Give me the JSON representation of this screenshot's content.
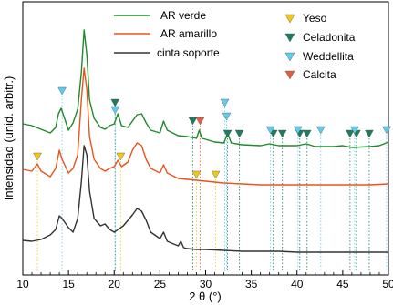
{
  "chart_data": {
    "type": "line",
    "xlabel": "2 θ (°)",
    "ylabel": "Intensidad (unid. arbitr.)",
    "xlim": [
      10,
      50
    ],
    "x_ticks": [
      10,
      15,
      20,
      25,
      30,
      35,
      40,
      45,
      50
    ],
    "y_ticks_labeled": false,
    "grid": false,
    "legend_position": "top",
    "series": [
      {
        "name": "AR verde",
        "color": "#1f8a2a",
        "points": [
          [
            10,
            136
          ],
          [
            11,
            138
          ],
          [
            12,
            142
          ],
          [
            13,
            146
          ],
          [
            13.6,
            140
          ],
          [
            13.9,
            125
          ],
          [
            14.2,
            119
          ],
          [
            14.5,
            128
          ],
          [
            15,
            143
          ],
          [
            15.5,
            135
          ],
          [
            16,
            120
          ],
          [
            16.4,
            80
          ],
          [
            16.7,
            33
          ],
          [
            17,
            60
          ],
          [
            17.3,
            110
          ],
          [
            17.8,
            130
          ],
          [
            18.5,
            140
          ],
          [
            19,
            142
          ],
          [
            19.5,
            138
          ],
          [
            20,
            136
          ],
          [
            20.4,
            125
          ],
          [
            20.8,
            138
          ],
          [
            21.5,
            140
          ],
          [
            22,
            133
          ],
          [
            22.5,
            126
          ],
          [
            23,
            125
          ],
          [
            23.5,
            135
          ],
          [
            24,
            143
          ],
          [
            25,
            146
          ],
          [
            25.4,
            133
          ],
          [
            25.8,
            143
          ],
          [
            27,
            149
          ],
          [
            28,
            150
          ],
          [
            29,
            152
          ],
          [
            29.3,
            143
          ],
          [
            29.6,
            152
          ],
          [
            30,
            153
          ],
          [
            31,
            156
          ],
          [
            32,
            157
          ],
          [
            32.4,
            146
          ],
          [
            32.8,
            157
          ],
          [
            34,
            159
          ],
          [
            36,
            160
          ],
          [
            37,
            158
          ],
          [
            38,
            160
          ],
          [
            40,
            160
          ],
          [
            41,
            158
          ],
          [
            42,
            161
          ],
          [
            44,
            161
          ],
          [
            45,
            160
          ],
          [
            46,
            162
          ],
          [
            48,
            161
          ],
          [
            49,
            160
          ],
          [
            50,
            156
          ]
        ]
      },
      {
        "name": "AR amarillo",
        "color": "#e8541a",
        "points": [
          [
            10,
            186
          ],
          [
            11,
            188
          ],
          [
            11.6,
            180
          ],
          [
            12,
            188
          ],
          [
            13,
            194
          ],
          [
            13.6,
            185
          ],
          [
            14,
            165
          ],
          [
            14.3,
            175
          ],
          [
            15,
            190
          ],
          [
            15.5,
            185
          ],
          [
            16,
            170
          ],
          [
            16.4,
            110
          ],
          [
            16.7,
            75
          ],
          [
            17,
            98
          ],
          [
            17.3,
            150
          ],
          [
            17.8,
            175
          ],
          [
            18.5,
            185
          ],
          [
            19,
            188
          ],
          [
            19.5,
            185
          ],
          [
            20,
            183
          ],
          [
            20.4,
            176
          ],
          [
            20.8,
            183
          ],
          [
            21.5,
            178
          ],
          [
            22,
            165
          ],
          [
            22.5,
            157
          ],
          [
            23,
            160
          ],
          [
            23.5,
            175
          ],
          [
            24,
            185
          ],
          [
            25,
            190
          ],
          [
            25.4,
            181
          ],
          [
            25.8,
            190
          ],
          [
            27,
            196
          ],
          [
            28,
            197
          ],
          [
            29,
            198
          ],
          [
            30,
            199
          ],
          [
            31,
            200
          ],
          [
            32,
            201
          ],
          [
            34,
            202
          ],
          [
            36,
            203
          ],
          [
            38,
            203
          ],
          [
            40,
            203
          ],
          [
            42,
            203
          ],
          [
            44,
            203
          ],
          [
            46,
            203
          ],
          [
            48,
            203
          ],
          [
            50,
            202
          ]
        ]
      },
      {
        "name": "cinta soporte",
        "color": "#333333",
        "points": [
          [
            10,
            264
          ],
          [
            11,
            265
          ],
          [
            12,
            263
          ],
          [
            13,
            258
          ],
          [
            13.6,
            252
          ],
          [
            14,
            237
          ],
          [
            14.3,
            240
          ],
          [
            15,
            250
          ],
          [
            15.5,
            255
          ],
          [
            16,
            240
          ],
          [
            16.4,
            200
          ],
          [
            16.7,
            160
          ],
          [
            17,
            170
          ],
          [
            17.3,
            210
          ],
          [
            17.8,
            240
          ],
          [
            18.5,
            248
          ],
          [
            19,
            246
          ],
          [
            19.5,
            252
          ],
          [
            20,
            255
          ],
          [
            21,
            248
          ],
          [
            22,
            236
          ],
          [
            22.5,
            229
          ],
          [
            23,
            232
          ],
          [
            23.5,
            242
          ],
          [
            24,
            255
          ],
          [
            25,
            262
          ],
          [
            25.4,
            255
          ],
          [
            25.8,
            265
          ],
          [
            26.5,
            268
          ],
          [
            27,
            270
          ],
          [
            27.3,
            265
          ],
          [
            27.6,
            272
          ],
          [
            28,
            273
          ],
          [
            29,
            274
          ],
          [
            30,
            274
          ],
          [
            32,
            275
          ],
          [
            34,
            276
          ],
          [
            36,
            276
          ],
          [
            38,
            276
          ],
          [
            40,
            277
          ],
          [
            42,
            277
          ],
          [
            44,
            277
          ],
          [
            46,
            277
          ],
          [
            48,
            277
          ],
          [
            50,
            277
          ]
        ]
      }
    ],
    "markers": [
      {
        "name": "Yeso",
        "color": "#f5c518",
        "positions": [
          [
            11.6,
            171
          ],
          [
            20.7,
            171
          ],
          [
            29,
            191
          ],
          [
            31.1,
            191
          ]
        ]
      },
      {
        "name": "Celadonita",
        "color": "#1a7f5a",
        "positions": [
          [
            20.1,
            112
          ],
          [
            28.6,
            132
          ],
          [
            32.4,
            146
          ],
          [
            33.7,
            146
          ],
          [
            37.4,
            146
          ],
          [
            38.4,
            146
          ],
          [
            40.3,
            146
          ],
          [
            41.1,
            146
          ],
          [
            45.8,
            146
          ],
          [
            46.5,
            146
          ],
          [
            47.9,
            146
          ]
        ]
      },
      {
        "name": "Weddellita",
        "color": "#5ecbf0",
        "positions": [
          [
            14.3,
            99
          ],
          [
            20.1,
            120
          ],
          [
            32.1,
            112
          ],
          [
            32.3,
            127
          ],
          [
            37.1,
            142
          ],
          [
            40.1,
            142
          ],
          [
            42.6,
            142
          ],
          [
            46.3,
            142
          ],
          [
            49.8,
            142
          ]
        ]
      },
      {
        "name": "Calcita",
        "color": "#e85a3a",
        "positions": [
          [
            29.4,
            132
          ]
        ]
      }
    ]
  }
}
